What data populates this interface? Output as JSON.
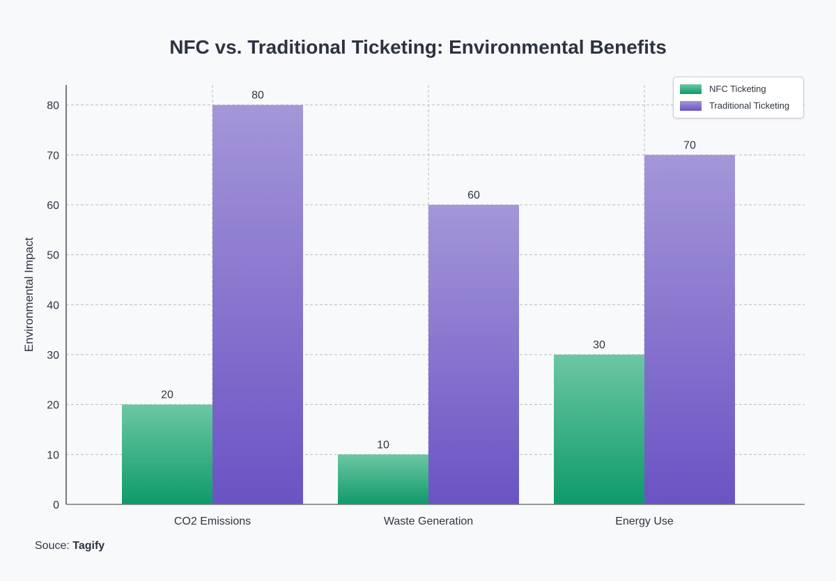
{
  "chart_data": {
    "type": "bar",
    "title": "NFC vs. Traditional Ticketing: Environmental Benefits",
    "xlabel": "",
    "ylabel": "Environmental Impact",
    "categories": [
      "CO2 Emissions",
      "Waste Generation",
      "Energy Use"
    ],
    "series": [
      {
        "name": "NFC Ticketing",
        "values": [
          20,
          10,
          30
        ],
        "color": "#0e9a6a",
        "color_light": "#6cc7a3"
      },
      {
        "name": "Traditional Ticketing",
        "values": [
          80,
          60,
          70
        ],
        "color": "#6a53c4",
        "color_light": "#a496d8"
      }
    ],
    "ylim": [
      0,
      84
    ],
    "yticks": [
      0,
      10,
      20,
      30,
      40,
      50,
      60,
      70,
      80
    ],
    "grid": true,
    "legend": "top-right",
    "data_labels": true
  },
  "source": {
    "label": "Souce:",
    "value": "Tagify"
  }
}
